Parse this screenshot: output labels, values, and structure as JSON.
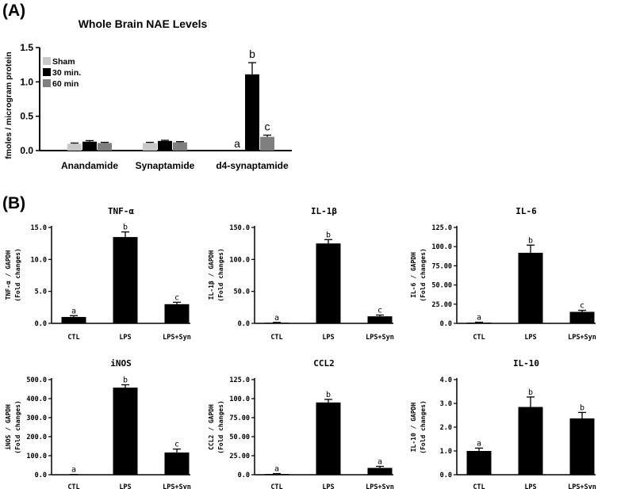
{
  "panels": [
    {
      "label": "(A)"
    },
    {
      "label": "(B)"
    }
  ],
  "chart_data": [
    {
      "type": "bar",
      "panel": "(A)",
      "title": "Whole Brain NAE Levels",
      "ylabel": "fmoles / microgram protein",
      "ylim": [
        0,
        1.5
      ],
      "yticks": [
        "0.0",
        "0.5",
        "1.0",
        "1.5"
      ],
      "categories": [
        "Anandamide",
        "Synaptamide",
        "d4-synaptamide"
      ],
      "legend": "top-left",
      "series": [
        {
          "name": "Sham",
          "color": "#c8c8c8",
          "values": [
            0.1,
            0.11,
            0
          ],
          "errors": [
            0.01,
            0.01,
            0
          ],
          "labels": [
            "",
            "",
            "a"
          ]
        },
        {
          "name": "30 min.",
          "color": "#000000",
          "values": [
            0.13,
            0.14,
            1.11
          ],
          "errors": [
            0.015,
            0.01,
            0.17
          ],
          "labels": [
            "",
            "",
            "b"
          ]
        },
        {
          "name": "60 min",
          "color": "#7f7f7f",
          "values": [
            0.11,
            0.12,
            0.2
          ],
          "errors": [
            0.01,
            0.01,
            0.025
          ],
          "labels": [
            "",
            "",
            "c"
          ]
        }
      ]
    },
    {
      "type": "bar",
      "panel": "(B)",
      "title": "TNF-α",
      "ylabel": "TNF-α / GAPDH",
      "ylabel2": "(Fold changes)",
      "categories": [
        "CTL",
        "LPS",
        "LPS+Syn"
      ],
      "values": [
        1.0,
        13.5,
        3.0
      ],
      "errors": [
        0.2,
        0.8,
        0.3
      ],
      "labels": [
        "a",
        "b",
        "c"
      ],
      "ylim": [
        0,
        15
      ],
      "yticks": [
        "0.0",
        "5.0",
        "10.0",
        "15.0"
      ]
    },
    {
      "type": "bar",
      "panel": "(B)",
      "title": "IL-1β",
      "ylabel": "IL-1β / GAPDH",
      "ylabel2": "(Fold changes)",
      "categories": [
        "CTL",
        "LPS",
        "LPS+Syn"
      ],
      "values": [
        1.0,
        125,
        11
      ],
      "errors": [
        0.5,
        6,
        2
      ],
      "labels": [
        "a",
        "b",
        "c"
      ],
      "ylim": [
        0,
        150
      ],
      "yticks": [
        "0.0",
        "50.0",
        "100.0",
        "150.0"
      ]
    },
    {
      "type": "bar",
      "panel": "(B)",
      "title": "IL-6",
      "ylabel": "IL-6 / GAPDH",
      "ylabel2": "(Fold changes)",
      "categories": [
        "CTL",
        "LPS",
        "LPS+Syn"
      ],
      "values": [
        1.0,
        92,
        15
      ],
      "errors": [
        0.5,
        10,
        2
      ],
      "labels": [
        "a",
        "b",
        "c"
      ],
      "ylim": [
        0,
        125
      ],
      "yticks": [
        "0.0",
        "25.00",
        "50.00",
        "75.00",
        "100.0",
        "125.0"
      ]
    },
    {
      "type": "bar",
      "panel": "(B)",
      "title": "iNOS",
      "ylabel": "iNOS / GAPDH",
      "ylabel2": "(Fold changes)",
      "categories": [
        "CTL",
        "LPS",
        "LPS+Syn"
      ],
      "values": [
        1.0,
        458,
        117
      ],
      "errors": [
        0.5,
        15,
        18
      ],
      "labels": [
        "a",
        "b",
        "c"
      ],
      "ylim": [
        0,
        500
      ],
      "yticks": [
        "0.0",
        "100.0",
        "200.0",
        "300.0",
        "400.0",
        "500.0"
      ]
    },
    {
      "type": "bar",
      "panel": "(B)",
      "title": "CCL2",
      "ylabel": "CCL2 / GAPDH",
      "ylabel2": "(Fold changes)",
      "categories": [
        "CTL",
        "LPS",
        "LPS+Syn"
      ],
      "values": [
        1.0,
        95,
        9
      ],
      "errors": [
        0.5,
        4,
        2
      ],
      "labels": [
        "a",
        "b",
        "a"
      ],
      "ylim": [
        0,
        125
      ],
      "yticks": [
        "0.0",
        "25.00",
        "50.00",
        "75.00",
        "100.0",
        "125.0"
      ]
    },
    {
      "type": "bar",
      "panel": "(B)",
      "title": "IL-10",
      "ylabel": "IL-10 / GAPDH",
      "ylabel2": "(Fold changes)",
      "categories": [
        "CTL",
        "LPS",
        "LPS+Syn"
      ],
      "values": [
        1.0,
        2.85,
        2.37
      ],
      "errors": [
        0.12,
        0.42,
        0.25
      ],
      "labels": [
        "a",
        "b",
        "b"
      ],
      "ylim": [
        0,
        4
      ],
      "yticks": [
        "0.0",
        "1.0",
        "2.0",
        "3.0",
        "4.0"
      ]
    }
  ]
}
